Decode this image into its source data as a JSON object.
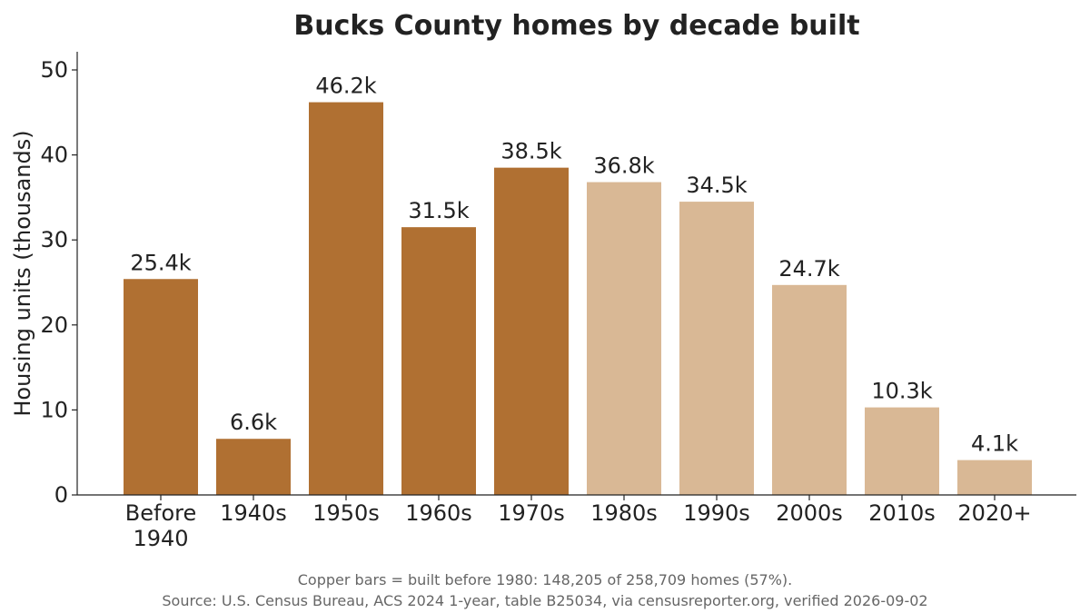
{
  "chart_data": {
    "type": "bar",
    "title": "Bucks County homes by decade built",
    "xlabel": "",
    "ylabel": "Housing units (thousands)",
    "ylim": [
      0,
      52
    ],
    "yticks": [
      0,
      10,
      20,
      30,
      40,
      50
    ],
    "grid": false,
    "categories": [
      [
        "Before",
        "1940"
      ],
      [
        "1940s"
      ],
      [
        "1950s"
      ],
      [
        "1960s"
      ],
      [
        "1970s"
      ],
      [
        "1980s"
      ],
      [
        "1990s"
      ],
      [
        "2000s"
      ],
      [
        "2010s"
      ],
      [
        "2020+"
      ]
    ],
    "values": [
      25.4,
      6.6,
      46.2,
      31.5,
      38.5,
      36.8,
      34.5,
      24.7,
      10.3,
      4.1
    ],
    "data_labels": [
      "25.4k",
      "6.6k",
      "46.2k",
      "31.5k",
      "38.5k",
      "36.8k",
      "34.5k",
      "24.7k",
      "10.3k",
      "4.1k"
    ],
    "bar_groups": [
      "pre1980",
      "pre1980",
      "pre1980",
      "pre1980",
      "pre1980",
      "post1980",
      "post1980",
      "post1980",
      "post1980",
      "post1980"
    ],
    "colors": {
      "pre1980": "#b07032",
      "post1980": "#d9b895"
    },
    "footnotes": [
      "Copper bars = built before 1980: 148,205 of 258,709 homes (57%).",
      "Source: U.S. Census Bureau, ACS 2024 1-year, table B25034, via censusreporter.org, verified 2026-09-02"
    ]
  }
}
